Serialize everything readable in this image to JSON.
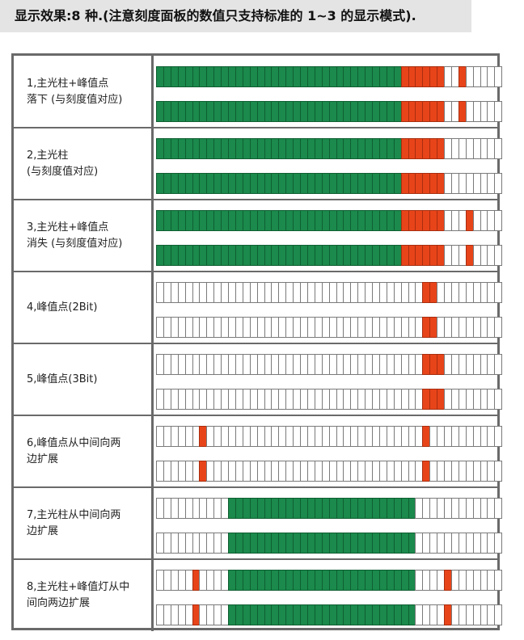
{
  "title": "显示效果:8 种.(注意刻度面板的数值只支持标准的 1~3 的显示模式).",
  "colors": {
    "green": "#1b8a4c",
    "red": "#e8441a",
    "off": "#ffffff"
  },
  "segments_per_bar": 48,
  "modes": [
    {
      "label_lines": [
        "1,主光柱+峰值点",
        "落下 (与刻度值对应)"
      ],
      "bars": [
        {
          "green": [
            0,
            33
          ],
          "red": [
            [
              34,
              39
            ],
            [
              42,
              42
            ]
          ]
        },
        {
          "green": [
            0,
            33
          ],
          "red": [
            [
              34,
              39
            ],
            [
              42,
              42
            ]
          ]
        }
      ]
    },
    {
      "label_lines": [
        "2,主光柱",
        "(与刻度值对应)"
      ],
      "bars": [
        {
          "green": [
            0,
            33
          ],
          "red": [
            [
              34,
              39
            ]
          ]
        },
        {
          "green": [
            0,
            33
          ],
          "red": [
            [
              34,
              39
            ]
          ]
        }
      ]
    },
    {
      "label_lines": [
        "3,主光柱+峰值点",
        "消失 (与刻度值对应)"
      ],
      "bars": [
        {
          "green": [
            0,
            33
          ],
          "red": [
            [
              34,
              39
            ],
            [
              43,
              43
            ]
          ]
        },
        {
          "green": [
            0,
            33
          ],
          "red": [
            [
              34,
              39
            ],
            [
              43,
              43
            ]
          ]
        }
      ]
    },
    {
      "label_lines": [
        "4,峰值点(2Bit)"
      ],
      "bars": [
        {
          "green": null,
          "red": [
            [
              37,
              38
            ]
          ]
        },
        {
          "green": null,
          "red": [
            [
              37,
              38
            ]
          ]
        }
      ]
    },
    {
      "label_lines": [
        "5,峰值点(3Bit)"
      ],
      "bars": [
        {
          "green": null,
          "red": [
            [
              37,
              39
            ]
          ]
        },
        {
          "green": null,
          "red": [
            [
              37,
              39
            ]
          ]
        }
      ]
    },
    {
      "label_lines": [
        "6,峰值点从中间向两",
        "边扩展"
      ],
      "bars": [
        {
          "green": null,
          "red": [
            [
              6,
              6
            ],
            [
              37,
              37
            ]
          ]
        },
        {
          "green": null,
          "red": [
            [
              6,
              6
            ],
            [
              37,
              37
            ]
          ]
        }
      ]
    },
    {
      "label_lines": [
        "7,主光柱从中间向两",
        "边扩展"
      ],
      "bars": [
        {
          "green": [
            10,
            35
          ],
          "red": []
        },
        {
          "green": [
            10,
            35
          ],
          "red": []
        }
      ]
    },
    {
      "label_lines": [
        "8,主光柱+峰值灯从中",
        "间向两边扩展"
      ],
      "bars": [
        {
          "green": [
            10,
            35
          ],
          "red": [
            [
              5,
              5
            ],
            [
              40,
              40
            ]
          ]
        },
        {
          "green": [
            10,
            35
          ],
          "red": [
            [
              5,
              5
            ],
            [
              40,
              40
            ]
          ]
        }
      ]
    }
  ]
}
